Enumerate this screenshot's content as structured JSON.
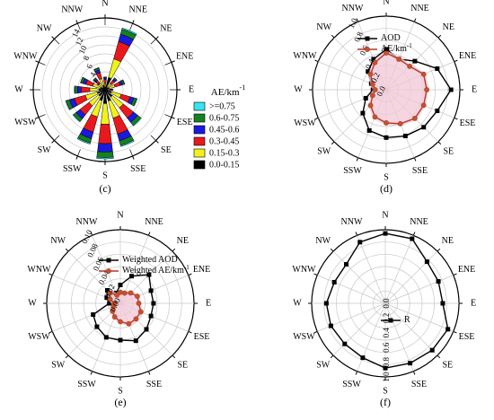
{
  "directions": [
    "N",
    "NNE",
    "NE",
    "ENE",
    "E",
    "ESE",
    "SE",
    "SSE",
    "S",
    "SSW",
    "SW",
    "WSW",
    "W",
    "WNW",
    "NW",
    "NNW"
  ],
  "colors": {
    "bin_ge075": "#38e3f2",
    "bin_06_075": "#15821f",
    "bin_045_06": "#1a1adf",
    "bin_03_045": "#e8191c",
    "bin_015_03": "#f2f21a",
    "bin_0_015": "#000000",
    "aod_line": "#000000",
    "ae_line": "#b5372a",
    "ae_marker": "#c2542b",
    "shade": "#f2c8d6"
  },
  "chart_data": [
    {
      "panel_label": "(c)",
      "type": "bar",
      "subtype": "polar-stacked",
      "radial_ticks": [
        "2",
        "4",
        "6",
        "8",
        "10",
        "12",
        "14"
      ],
      "rmax": 14,
      "legend_title": "AE/km",
      "legend_title_sup": "-1",
      "legend": [
        {
          "name": ">=0.75",
          "color_key": "bin_ge075"
        },
        {
          "name": "0.6-0.75",
          "color_key": "bin_06_075"
        },
        {
          "name": "0.45-0.6",
          "color_key": "bin_045_06"
        },
        {
          "name": "0.3-0.45",
          "color_key": "bin_03_045"
        },
        {
          "name": "0.15-0.3",
          "color_key": "bin_015_03"
        },
        {
          "name": "0.0-0.15",
          "color_key": "bin_0_015"
        }
      ],
      "stack_totals": [
        2.5,
        12.5,
        3,
        4,
        1.5,
        6.5,
        9,
        11.5,
        13.5,
        11,
        8,
        8,
        6,
        5,
        3,
        4.5
      ],
      "stack_fractions": [
        0.02,
        0.08,
        0.12,
        0.28,
        0.3,
        0.2
      ]
    },
    {
      "panel_label": "(d)",
      "type": "line",
      "subtype": "polar",
      "radial_ticks": [
        "0.0",
        "0.2",
        "0.4",
        "0.6",
        "0.8",
        "1.0"
      ],
      "rmax": 1.0,
      "series": [
        {
          "name": "AOD",
          "values": [
            0.55,
            0.45,
            0.55,
            0.75,
            0.88,
            0.75,
            0.72,
            0.68,
            0.65,
            0.6,
            0.45,
            0.3,
            0.18,
            0.22,
            0.35,
            0.45
          ]
        },
        {
          "name": "AE/km",
          "name_sup": "-1",
          "values": [
            0.5,
            0.45,
            0.45,
            0.55,
            0.55,
            0.55,
            0.55,
            0.5,
            0.45,
            0.4,
            0.3,
            0.2,
            0.15,
            0.2,
            0.3,
            0.4
          ]
        }
      ]
    },
    {
      "panel_label": "(e)",
      "type": "line",
      "subtype": "polar",
      "radial_ticks": [
        "0.00",
        "0.02",
        "0.04",
        "0.06",
        "0.08",
        "0.10"
      ],
      "rmax": 0.1,
      "series": [
        {
          "name": "Weighted AOD",
          "values": [
            0.025,
            0.04,
            0.055,
            0.045,
            0.045,
            0.045,
            0.05,
            0.055,
            0.05,
            0.05,
            0.045,
            0.04,
            0.015,
            0.02,
            0.025,
            0.015
          ]
        },
        {
          "name": "Weighted AE/km",
          "name_sup": "-1",
          "values": [
            0.015,
            0.015,
            0.02,
            0.025,
            0.025,
            0.03,
            0.03,
            0.03,
            0.025,
            0.02,
            0.015,
            0.01,
            0.008,
            0.015,
            0.02,
            0.012
          ]
        }
      ]
    },
    {
      "panel_label": "(f)",
      "type": "line",
      "subtype": "polar",
      "radial_ticks": [
        "0.0",
        "0.2",
        "0.4",
        "0.6",
        "0.8",
        "1.0"
      ],
      "rmax": 1.0,
      "series": [
        {
          "name": "R",
          "values": [
            0.95,
            0.95,
            0.8,
            0.78,
            0.78,
            0.92,
            0.9,
            0.88,
            0.88,
            0.8,
            0.78,
            0.8,
            0.8,
            0.75,
            0.75,
            0.9
          ]
        }
      ]
    }
  ]
}
